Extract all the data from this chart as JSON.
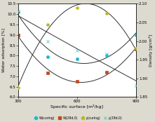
{
  "x_data": [
    300,
    450,
    600,
    750,
    900
  ],
  "W_curing": [
    10.1,
    7.95,
    7.85,
    8.0,
    9.0
  ],
  "W28d0": [
    9.0,
    7.15,
    6.75,
    7.2,
    8.3
  ],
  "p_curing": [
    1.875,
    2.045,
    2.09,
    2.075,
    1.98
  ],
  "p28d0": [
    2.08,
    2.0,
    1.975,
    1.965,
    1.88
  ],
  "xlim": [
    300,
    900
  ],
  "ylim_left": [
    6.0,
    10.5
  ],
  "ylim_right": [
    1.85,
    2.1
  ],
  "xlabel": "Specific surface [m²/kg]",
  "ylabel_left": "Water adsorption [%]",
  "ylabel_right": "Density [g/cm³]",
  "xticks": [
    300,
    600,
    900
  ],
  "yticks_left": [
    6.0,
    6.5,
    7.0,
    7.5,
    8.0,
    8.5,
    9.0,
    9.5,
    10.0,
    10.5
  ],
  "yticks_right": [
    1.85,
    1.9,
    1.95,
    2.0,
    2.05,
    2.1
  ],
  "color_W_curing": "#20b8cc",
  "color_W28d0": "#c04820",
  "color_p_curing": "#b8b820",
  "color_p28d0": "#50c8c8",
  "legend_labels": [
    "W(curing)",
    "W(28d,0)",
    "ρ(curing)",
    "ρ(28d,0)"
  ],
  "bg_color": "#dddbd0",
  "plot_bg": "#ffffff",
  "line_color": "#303030",
  "figsize": [
    2.21,
    1.74
  ],
  "dpi": 100
}
